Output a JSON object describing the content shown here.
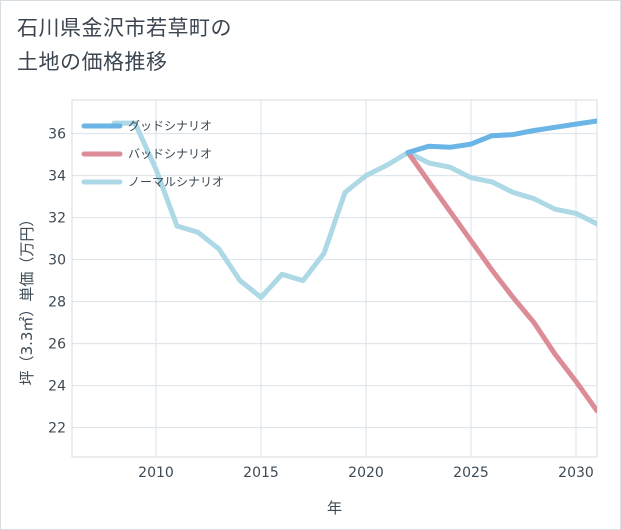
{
  "page": {
    "title_line1": "石川県金沢市若草町の",
    "title_line2": "土地の価格推移"
  },
  "chart_data": {
    "type": "line",
    "xlabel": "年",
    "ylabel": "坪（3.3㎡）単価（万円）",
    "xlim": [
      2006,
      2031
    ],
    "ylim": [
      20.6,
      37.6
    ],
    "xticks": [
      2010,
      2015,
      2020,
      2025,
      2030
    ],
    "yticks": [
      22,
      24,
      26,
      28,
      30,
      32,
      34,
      36
    ],
    "grid": true,
    "legend_position": "top-left",
    "series": [
      {
        "name": "ノーマルシナリオ",
        "color": "#add8e6",
        "x": [
          2008,
          2009,
          2010,
          2011,
          2012,
          2013,
          2014,
          2015,
          2016,
          2017,
          2018,
          2019,
          2020,
          2021,
          2022,
          2023,
          2024,
          2025,
          2026,
          2027,
          2028,
          2029,
          2030,
          2031
        ],
        "y": [
          36.5,
          36.5,
          34.3,
          31.6,
          31.3,
          30.5,
          29.0,
          28.2,
          29.3,
          29.0,
          30.3,
          33.2,
          34.0,
          34.5,
          35.1,
          34.6,
          34.4,
          33.9,
          33.7,
          33.2,
          32.9,
          32.4,
          32.2,
          31.7
        ]
      },
      {
        "name": "バッドシナリオ",
        "color": "#dc8c96",
        "x": [
          2022,
          2023,
          2024,
          2025,
          2026,
          2027,
          2028,
          2029,
          2030,
          2031
        ],
        "y": [
          35.1,
          33.7,
          32.3,
          30.9,
          29.5,
          28.2,
          27.0,
          25.5,
          24.2,
          22.8
        ]
      },
      {
        "name": "グッドシナリオ",
        "color": "#6ab4e6",
        "x": [
          2022,
          2023,
          2024,
          2025,
          2026,
          2027,
          2028,
          2029,
          2030,
          2031
        ],
        "y": [
          35.1,
          35.4,
          35.35,
          35.5,
          35.9,
          35.95,
          36.15,
          36.3,
          36.45,
          36.6
        ]
      }
    ],
    "legend": [
      "グッドシナリオ",
      "バッドシナリオ",
      "ノーマルシナリオ"
    ]
  }
}
